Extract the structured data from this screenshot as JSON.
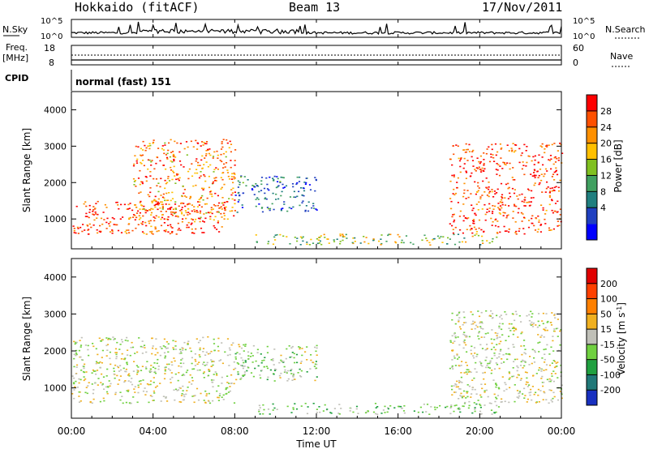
{
  "header": {
    "title": "Hokkaido (fitACF)",
    "beam": "Beam 13",
    "date": "17/Nov/2011"
  },
  "noise_panel": {
    "left_label": "N.Sky",
    "right_label": "N.Search",
    "left_ticks": [
      "10^5",
      "10^0"
    ],
    "right_ticks": [
      "10^5",
      "10^0"
    ]
  },
  "freq_panel": {
    "left_label_line1": "Freq.",
    "left_label_line2": "[MHz]",
    "left_ticks": [
      "18",
      "8"
    ],
    "right_label": "Nave",
    "right_ticks": [
      "60",
      "0"
    ]
  },
  "cpid": {
    "label": "CPID",
    "value": "normal (fast) 151"
  },
  "x_axis": {
    "title": "Time UT",
    "ticks": [
      "00:00",
      "04:00",
      "08:00",
      "12:00",
      "16:00",
      "20:00",
      "00:00"
    ]
  },
  "power_panel": {
    "ylabel": "Slant Range [km]",
    "yticks": [
      "1000",
      "2000",
      "3000",
      "4000"
    ],
    "colorbar_label": "Power [dB]",
    "colorbar_ticks": [
      "28",
      "24",
      "20",
      "16",
      "12",
      "8",
      "4"
    ],
    "colors": [
      "#0000ff",
      "#2040c0",
      "#207f7f",
      "#40a060",
      "#80c020",
      "#ffc000",
      "#ff9000",
      "#ff5000",
      "#ff0000"
    ]
  },
  "velocity_panel": {
    "ylabel": "Slant Range [km]",
    "yticks": [
      "1000",
      "2000",
      "3000",
      "4000"
    ],
    "colorbar_label": "Velocity [m s^-1]",
    "colorbar_ticks": [
      "200",
      "100",
      "50",
      "15",
      "-15",
      "-50",
      "-100",
      "-200"
    ],
    "colors": [
      "#1830c0",
      "#207878",
      "#20a040",
      "#70d040",
      "#c0c0b8",
      "#f0b020",
      "#ff8000",
      "#ff4000",
      "#e00000"
    ]
  },
  "chart_data": [
    {
      "type": "heatmap",
      "title": "Power [dB]",
      "xlabel": "Time UT",
      "ylabel": "Slant Range [km]",
      "x_range_hours": [
        0,
        24
      ],
      "y_range_km": [
        180,
        4500
      ],
      "color_range": [
        0,
        32
      ],
      "regions": [
        {
          "name": "early_sea_scatter_band",
          "t": [
            0,
            7.5
          ],
          "r": [
            600,
            1500
          ],
          "value": 28
        },
        {
          "name": "early_streaks",
          "t": [
            3,
            8
          ],
          "r": [
            1000,
            3200
          ],
          "value": 24
        },
        {
          "name": "mid_arc",
          "t": [
            8,
            12
          ],
          "r": [
            1200,
            2200
          ],
          "value": 8
        },
        {
          "name": "near_range_band",
          "t": [
            9,
            21
          ],
          "r": [
            300,
            600
          ],
          "value": 16
        },
        {
          "name": "late_band",
          "t": [
            18.5,
            24
          ],
          "r": [
            600,
            3100
          ],
          "value": 28
        }
      ]
    },
    {
      "type": "heatmap",
      "title": "Velocity [m s^-1]",
      "xlabel": "Time UT",
      "ylabel": "Slant Range [km]",
      "x_range_hours": [
        0,
        24
      ],
      "y_range_km": [
        180,
        4500
      ],
      "color_range": [
        -200,
        200
      ],
      "regions": [
        {
          "name": "early_ground_scatter",
          "t": [
            0,
            8
          ],
          "r": [
            600,
            2400
          ],
          "value": 0
        },
        {
          "name": "mid_arc",
          "t": [
            8,
            12
          ],
          "r": [
            1200,
            2200
          ],
          "value": -30
        },
        {
          "name": "near_range_band",
          "t": [
            9,
            21
          ],
          "r": [
            300,
            600
          ],
          "value": -40
        },
        {
          "name": "late_band",
          "t": [
            18.5,
            24
          ],
          "r": [
            600,
            3100
          ],
          "value": 0
        }
      ]
    }
  ]
}
